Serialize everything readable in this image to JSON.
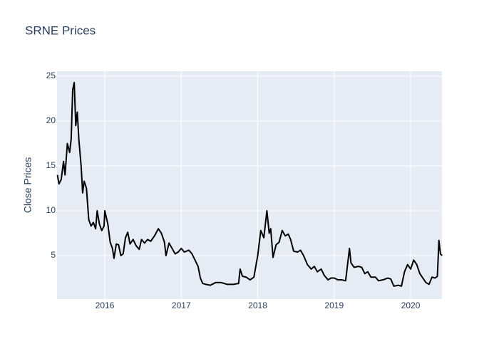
{
  "chart_data": {
    "type": "line",
    "title": "SRNE Prices",
    "y_label": "Close Prices",
    "color": "#000000",
    "grid": true,
    "xlim": [
      2015.375,
      2020.41
    ],
    "xticks": [
      2016,
      2017,
      2018,
      2019,
      2020
    ],
    "ylim": [
      0.16,
      25.56
    ],
    "yticks": [
      5,
      10,
      15,
      20,
      25
    ],
    "x": [
      2015.38,
      2015.4,
      2015.43,
      2015.46,
      2015.48,
      2015.51,
      2015.54,
      2015.56,
      2015.58,
      2015.6,
      2015.62,
      2015.64,
      2015.66,
      2015.69,
      2015.71,
      2015.73,
      2015.76,
      2015.79,
      2015.82,
      2015.85,
      2015.88,
      2015.9,
      2015.93,
      2015.96,
      2015.99,
      2016.0,
      2016.04,
      2016.07,
      2016.1,
      2016.12,
      2016.15,
      2016.18,
      2016.21,
      2016.24,
      2016.27,
      2016.3,
      2016.33,
      2016.37,
      2016.41,
      2016.45,
      2016.48,
      2016.52,
      2016.56,
      2016.6,
      2016.65,
      2016.7,
      2016.74,
      2016.78,
      2016.8,
      2016.84,
      2016.88,
      2016.92,
      2016.96,
      2017.0,
      2017.04,
      2017.1,
      2017.14,
      2017.18,
      2017.22,
      2017.25,
      2017.28,
      2017.32,
      2017.38,
      2017.45,
      2017.52,
      2017.6,
      2017.68,
      2017.75,
      2017.77,
      2017.8,
      2017.85,
      2017.9,
      2017.95,
      2018.0,
      2018.04,
      2018.08,
      2018.12,
      2018.15,
      2018.17,
      2018.2,
      2018.24,
      2018.28,
      2018.32,
      2018.36,
      2018.4,
      2018.43,
      2018.47,
      2018.52,
      2018.56,
      2018.6,
      2018.65,
      2018.7,
      2018.74,
      2018.78,
      2018.83,
      2018.87,
      2018.92,
      2018.96,
      2019.0,
      2019.05,
      2019.1,
      2019.15,
      2019.2,
      2019.22,
      2019.26,
      2019.32,
      2019.36,
      2019.4,
      2019.44,
      2019.48,
      2019.54,
      2019.58,
      2019.64,
      2019.7,
      2019.74,
      2019.78,
      2019.84,
      2019.88,
      2019.92,
      2019.96,
      2020.0,
      2020.04,
      2020.08,
      2020.12,
      2020.16,
      2020.2,
      2020.24,
      2020.28,
      2020.32,
      2020.35,
      2020.37,
      2020.39,
      2020.41
    ],
    "values": [
      14,
      13,
      13.5,
      15.5,
      14,
      17.5,
      16.5,
      18,
      23.5,
      24.3,
      19.5,
      21,
      18,
      15,
      12,
      13.3,
      12.5,
      9,
      8.3,
      8.7,
      8,
      10,
      8.5,
      7.8,
      8.3,
      10,
      8.5,
      6.5,
      5.8,
      4.7,
      6.3,
      6.2,
      5.0,
      5.2,
      7.0,
      7.6,
      6.3,
      6.8,
      6.1,
      5.7,
      6.8,
      6.4,
      6.8,
      6.6,
      7.2,
      8.0,
      7.5,
      6.5,
      5.0,
      6.4,
      5.8,
      5.2,
      5.4,
      5.8,
      5.4,
      5.6,
      5.2,
      4.5,
      3.8,
      2.5,
      1.9,
      1.8,
      1.7,
      2.0,
      2.0,
      1.8,
      1.8,
      1.9,
      3.5,
      2.7,
      2.6,
      2.3,
      2.6,
      5.0,
      7.8,
      7.0,
      10.0,
      7.5,
      8.0,
      4.8,
      6.2,
      6.5,
      7.8,
      7.2,
      7.4,
      6.8,
      5.5,
      5.4,
      5.6,
      5.0,
      4.0,
      3.5,
      3.8,
      3.2,
      3.5,
      2.8,
      2.3,
      2.5,
      2.5,
      2.3,
      2.3,
      2.2,
      5.8,
      4.2,
      3.7,
      3.8,
      3.7,
      3.0,
      3.2,
      2.6,
      2.6,
      2.2,
      2.3,
      2.5,
      2.4,
      1.6,
      1.7,
      1.6,
      3.2,
      4.0,
      3.5,
      4.5,
      4.0,
      3.0,
      2.5,
      2.0,
      1.8,
      2.6,
      2.5,
      2.7,
      6.7,
      5.2,
      5.0
    ]
  }
}
